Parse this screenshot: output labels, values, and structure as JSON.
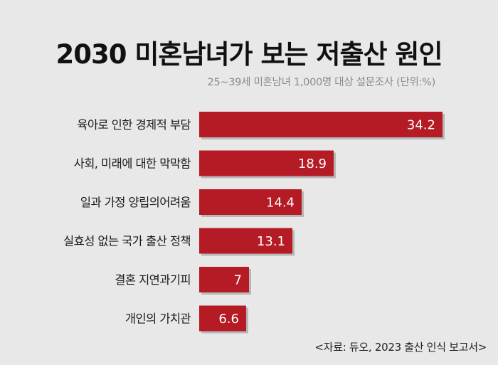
{
  "header": {
    "title": "2030 미혼남녀가 보는 저출산 원인",
    "subtitle": "25~39세 미혼남녀 1,000명 대상 설문조사 (단위:%)"
  },
  "footer": {
    "source": "<자료: 듀오, 2023 출산 인식 보고서>"
  },
  "colors": {
    "bar": "#b51b24",
    "bar_shadow": "#8e8e8e",
    "value_text": "#ffffff",
    "label_text": "#1a1a1a"
  },
  "chart_data": {
    "type": "bar",
    "orientation": "horizontal",
    "title": "2030 미혼남녀가 보는 저출산 원인",
    "subtitle": "25~39세 미혼남녀 1,000명 대상 설문조사 (단위:%)",
    "categories": [
      "육아로 인한 경제적 부담",
      "사회, 미래에 대한 막막함",
      "일과 가정 양립의어려움",
      "실효성 없는 국가 출산 정책",
      "결혼 지연과기피",
      "개인의 가치관"
    ],
    "values": [
      34.2,
      18.9,
      14.4,
      13.1,
      7,
      6.6
    ],
    "value_labels": [
      "34.2",
      "18.9",
      "14.4",
      "13.1",
      "7",
      "6.6"
    ],
    "xlim": [
      0,
      34.2
    ],
    "grid": false,
    "legend": "none"
  }
}
